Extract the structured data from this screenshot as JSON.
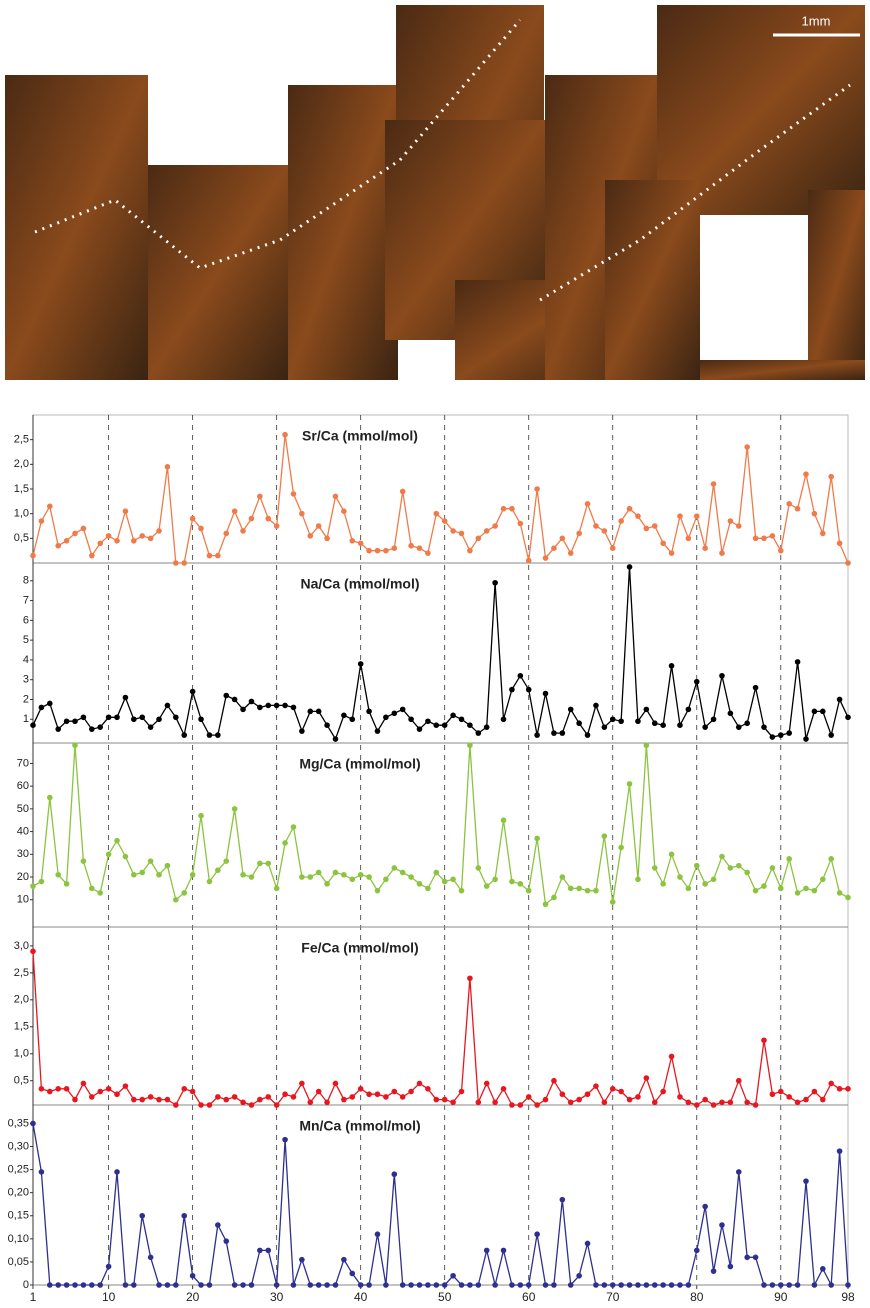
{
  "image": {
    "scale_label": "1mm"
  },
  "chart_data": [
    {
      "type": "line",
      "title": "Sr/Ca (mmol/mol)",
      "color": "#f07b4a",
      "xlim": [
        1,
        98
      ],
      "ylim": [
        0,
        3.0
      ],
      "yticks": [
        {
          "value": 0.5,
          "label": "0,5"
        },
        {
          "value": 1.0,
          "label": "1,0"
        },
        {
          "value": 1.5,
          "label": "1,5"
        },
        {
          "value": 2.0,
          "label": "2,0"
        },
        {
          "value": 2.5,
          "label": "2,5"
        }
      ],
      "x": [
        1,
        2,
        3,
        4,
        5,
        6,
        7,
        8,
        9,
        10,
        11,
        12,
        13,
        14,
        15,
        16,
        17,
        18,
        19,
        20,
        21,
        22,
        23,
        24,
        25,
        26,
        27,
        28,
        29,
        30,
        31,
        32,
        33,
        34,
        35,
        36,
        37,
        38,
        39,
        40,
        41,
        42,
        43,
        44,
        45,
        46,
        47,
        48,
        49,
        50,
        51,
        52,
        53,
        54,
        55,
        56,
        57,
        58,
        59,
        60,
        61,
        62,
        63,
        64,
        65,
        66,
        67,
        68,
        69,
        70,
        71,
        72,
        73,
        74,
        75,
        76,
        77,
        78,
        79,
        80,
        81,
        82,
        83,
        84,
        85,
        86,
        87,
        88,
        89,
        90,
        91,
        92,
        93,
        94,
        95,
        96,
        97,
        98
      ],
      "values": [
        0.15,
        0.85,
        1.15,
        0.35,
        0.45,
        0.6,
        0.7,
        0.15,
        0.4,
        0.55,
        0.45,
        1.05,
        0.45,
        0.55,
        0.5,
        0.65,
        1.95,
        0,
        0,
        0.9,
        0.7,
        0.15,
        0.15,
        0.6,
        1.05,
        0.65,
        0.9,
        1.35,
        0.9,
        0.75,
        2.6,
        1.4,
        1.0,
        0.55,
        0.75,
        0.5,
        1.35,
        1.05,
        0.45,
        0.4,
        0.25,
        0.25,
        0.25,
        0.3,
        1.45,
        0.35,
        0.3,
        0.2,
        1.0,
        0.85,
        0.65,
        0.6,
        0.25,
        0.5,
        0.65,
        0.75,
        1.1,
        1.1,
        0.8,
        0.05,
        1.5,
        0.1,
        0.3,
        0.5,
        0.2,
        0.6,
        1.2,
        0.75,
        0.65,
        0.3,
        0.85,
        1.1,
        0.95,
        0.7,
        0.75,
        0.4,
        0.2,
        0.95,
        0.5,
        0.95,
        0.3,
        1.6,
        0.2,
        0.85,
        0.75,
        2.35,
        0.5,
        0.5,
        0.55,
        0.25,
        1.2,
        1.1,
        1.8,
        1.0,
        0.6,
        1.75,
        0.4,
        0
      ]
    },
    {
      "type": "line",
      "title": "Na/Ca (mmol/mol)",
      "color": "#000000",
      "xlim": [
        1,
        98
      ],
      "ylim": [
        -0.2,
        8.9
      ],
      "yticks": [
        1,
        2,
        3,
        4,
        5,
        6,
        7,
        8
      ],
      "x": [
        1,
        2,
        3,
        4,
        5,
        6,
        7,
        8,
        9,
        10,
        11,
        12,
        13,
        14,
        15,
        16,
        17,
        18,
        19,
        20,
        21,
        22,
        23,
        24,
        25,
        26,
        27,
        28,
        29,
        30,
        31,
        32,
        33,
        34,
        35,
        36,
        37,
        38,
        39,
        40,
        41,
        42,
        43,
        44,
        45,
        46,
        47,
        48,
        49,
        50,
        51,
        52,
        53,
        54,
        55,
        56,
        57,
        58,
        59,
        60,
        61,
        62,
        63,
        64,
        65,
        66,
        67,
        68,
        69,
        70,
        71,
        72,
        73,
        74,
        75,
        76,
        77,
        78,
        79,
        80,
        81,
        82,
        83,
        84,
        85,
        86,
        87,
        88,
        89,
        90,
        91,
        92,
        93,
        94,
        95,
        96,
        97,
        98
      ],
      "values": [
        0.7,
        1.6,
        1.8,
        0.5,
        0.9,
        0.9,
        1.1,
        0.5,
        0.6,
        1.1,
        1.1,
        2.1,
        1.0,
        1.1,
        0.6,
        1.0,
        1.7,
        1.1,
        0.2,
        2.4,
        1.0,
        0.2,
        0.2,
        2.2,
        2.0,
        1.5,
        1.9,
        1.6,
        1.7,
        1.7,
        1.7,
        1.6,
        0.4,
        1.4,
        1.4,
        0.7,
        0,
        1.2,
        1.0,
        3.8,
        1.4,
        0.4,
        1.1,
        1.3,
        1.5,
        1.0,
        0.5,
        0.9,
        0.7,
        0.7,
        1.2,
        1.0,
        0.7,
        0.3,
        0.6,
        7.9,
        1.0,
        2.5,
        3.2,
        2.5,
        0.2,
        2.3,
        0.3,
        0.3,
        1.5,
        0.8,
        0.2,
        1.7,
        0.6,
        1.0,
        0.9,
        8.7,
        0.9,
        1.5,
        0.8,
        0.7,
        3.7,
        0.7,
        1.5,
        2.9,
        0.6,
        1.0,
        3.2,
        1.3,
        0.6,
        0.8,
        2.6,
        0.6,
        0.1,
        0.2,
        0.3,
        3.9,
        0,
        1.4,
        1.4,
        0.2,
        2.0,
        1.1
      ]
    },
    {
      "type": "line",
      "title": "Mg/Ca (mmol/mol)",
      "color": "#8cc43f",
      "xlim": [
        1,
        98
      ],
      "ylim": [
        -2,
        79
      ],
      "yticks": [
        10,
        20,
        30,
        40,
        50,
        60,
        70
      ],
      "x": [
        1,
        2,
        3,
        4,
        5,
        6,
        7,
        8,
        9,
        10,
        11,
        12,
        13,
        14,
        15,
        16,
        17,
        18,
        19,
        20,
        21,
        22,
        23,
        24,
        25,
        26,
        27,
        28,
        29,
        30,
        31,
        32,
        33,
        34,
        35,
        36,
        37,
        38,
        39,
        40,
        41,
        42,
        43,
        44,
        45,
        46,
        47,
        48,
        49,
        50,
        51,
        52,
        53,
        54,
        55,
        56,
        57,
        58,
        59,
        60,
        61,
        62,
        63,
        64,
        65,
        66,
        67,
        68,
        69,
        70,
        71,
        72,
        73,
        74,
        75,
        76,
        77,
        78,
        79,
        80,
        81,
        82,
        83,
        84,
        85,
        86,
        87,
        88,
        89,
        90,
        91,
        92,
        93,
        94,
        95,
        96,
        97,
        98
      ],
      "values": [
        16,
        18,
        55,
        21,
        17,
        78,
        27,
        15,
        13,
        30,
        36,
        29,
        21,
        22,
        27,
        21,
        25,
        10,
        13,
        21,
        47,
        18,
        23,
        27,
        50,
        21,
        20,
        26,
        26,
        15,
        35,
        42,
        20,
        20,
        22,
        17,
        22,
        21,
        19,
        21,
        20,
        14,
        19,
        24,
        22,
        20,
        17,
        15,
        22,
        18,
        19,
        14,
        78,
        24,
        16,
        19,
        45,
        18,
        17,
        14,
        37,
        8,
        11,
        20,
        15,
        15,
        14,
        14,
        38,
        9,
        33,
        61,
        19,
        78,
        24,
        17,
        30,
        20,
        15,
        25,
        17,
        19,
        29,
        24,
        25,
        22,
        14,
        16,
        24,
        15,
        28,
        13,
        15,
        14,
        19,
        28,
        13,
        11
      ]
    },
    {
      "type": "line",
      "title": "Fe/Ca (mmol/mol)",
      "color": "#e8171f",
      "xlim": [
        1,
        98
      ],
      "ylim": [
        0.05,
        3.35
      ],
      "yticks": [
        {
          "value": 0.5,
          "label": "0,5"
        },
        {
          "value": 1.0,
          "label": "1,0"
        },
        {
          "value": 1.5,
          "label": "1,5"
        },
        {
          "value": 2.0,
          "label": "2,0"
        },
        {
          "value": 2.5,
          "label": "2,5"
        },
        {
          "value": 3.0,
          "label": "3,0"
        }
      ],
      "x": [
        1,
        2,
        3,
        4,
        5,
        6,
        7,
        8,
        9,
        10,
        11,
        12,
        13,
        14,
        15,
        16,
        17,
        18,
        19,
        20,
        21,
        22,
        23,
        24,
        25,
        26,
        27,
        28,
        29,
        30,
        31,
        32,
        33,
        34,
        35,
        36,
        37,
        38,
        39,
        40,
        41,
        42,
        43,
        44,
        45,
        46,
        47,
        48,
        49,
        50,
        51,
        52,
        53,
        54,
        55,
        56,
        57,
        58,
        59,
        60,
        61,
        62,
        63,
        64,
        65,
        66,
        67,
        68,
        69,
        70,
        71,
        72,
        73,
        74,
        75,
        76,
        77,
        78,
        79,
        80,
        81,
        82,
        83,
        84,
        85,
        86,
        87,
        88,
        89,
        90,
        91,
        92,
        93,
        94,
        95,
        96,
        97,
        98
      ],
      "values": [
        2.9,
        0.35,
        0.3,
        0.35,
        0.35,
        0.15,
        0.45,
        0.2,
        0.3,
        0.35,
        0.25,
        0.4,
        0.15,
        0.15,
        0.2,
        0.15,
        0.15,
        0.05,
        0.35,
        0.3,
        0.05,
        0.05,
        0.2,
        0.15,
        0.2,
        0.1,
        0.05,
        0.15,
        0.2,
        0.05,
        0.25,
        0.2,
        0.45,
        0.1,
        0.3,
        0.1,
        0.45,
        0.15,
        0.2,
        0.35,
        0.25,
        0.25,
        0.2,
        0.3,
        0.2,
        0.3,
        0.45,
        0.35,
        0.15,
        0.15,
        0.1,
        0.3,
        2.4,
        0.1,
        0.45,
        0.1,
        0.35,
        0.05,
        0.05,
        0.2,
        0.05,
        0.15,
        0.5,
        0.25,
        0.1,
        0.15,
        0.25,
        0.4,
        0.1,
        0.35,
        0.3,
        0.15,
        0.2,
        0.55,
        0.1,
        0.3,
        0.95,
        0.2,
        0.1,
        0.05,
        0.15,
        0.05,
        0.1,
        0.1,
        0.5,
        0.1,
        0.05,
        1.25,
        0.25,
        0.3,
        0.2,
        0.1,
        0.15,
        0.3,
        0.15,
        0.45,
        0.35,
        0.35
      ]
    },
    {
      "type": "line",
      "title": "Mn/Ca (mmol/mol)",
      "color": "#2e2f8f",
      "xlim": [
        1,
        98
      ],
      "ylim": [
        0,
        0.39
      ],
      "yticks": [
        0,
        {
          "value": 0.05,
          "label": "0,05"
        },
        {
          "value": 0.1,
          "label": "0,10"
        },
        {
          "value": 0.15,
          "label": "0,15"
        },
        {
          "value": 0.2,
          "label": "0,20"
        },
        {
          "value": 0.25,
          "label": "0,25"
        },
        {
          "value": 0.3,
          "label": "0,30"
        },
        {
          "value": 0.35,
          "label": "0,35"
        }
      ],
      "xticks": [
        1,
        10,
        20,
        30,
        40,
        50,
        60,
        70,
        80,
        90,
        98
      ],
      "x": [
        1,
        2,
        3,
        4,
        5,
        6,
        7,
        8,
        9,
        10,
        11,
        12,
        13,
        14,
        15,
        16,
        17,
        18,
        19,
        20,
        21,
        22,
        23,
        24,
        25,
        26,
        27,
        28,
        29,
        30,
        31,
        32,
        33,
        34,
        35,
        36,
        37,
        38,
        39,
        40,
        41,
        42,
        43,
        44,
        45,
        46,
        47,
        48,
        49,
        50,
        51,
        52,
        53,
        54,
        55,
        56,
        57,
        58,
        59,
        60,
        61,
        62,
        63,
        64,
        65,
        66,
        67,
        68,
        69,
        70,
        71,
        72,
        73,
        74,
        75,
        76,
        77,
        78,
        79,
        80,
        81,
        82,
        83,
        84,
        85,
        86,
        87,
        88,
        89,
        90,
        91,
        92,
        93,
        94,
        95,
        96,
        97,
        98
      ],
      "values": [
        0.35,
        0.245,
        0,
        0,
        0,
        0,
        0,
        0,
        0,
        0.04,
        0.245,
        0,
        0,
        0.15,
        0.06,
        0,
        0,
        0,
        0.15,
        0.02,
        0,
        0,
        0.13,
        0.095,
        0,
        0,
        0,
        0.075,
        0.075,
        0,
        0.315,
        0,
        0.055,
        0,
        0,
        0,
        0,
        0.055,
        0.025,
        0,
        0,
        0.11,
        0,
        0.24,
        0,
        0,
        0,
        0,
        0,
        0,
        0.02,
        0,
        0,
        0,
        0.075,
        0,
        0.075,
        0,
        0,
        0,
        0.11,
        0,
        0,
        0.185,
        0,
        0.02,
        0.09,
        0,
        0,
        0,
        0,
        0,
        0,
        0,
        0,
        0,
        0,
        0,
        0,
        0.075,
        0.17,
        0.03,
        0.13,
        0.04,
        0.245,
        0.06,
        0.06,
        0,
        0,
        0,
        0,
        0,
        0.225,
        0,
        0.035,
        0,
        0.29,
        0
      ]
    }
  ]
}
